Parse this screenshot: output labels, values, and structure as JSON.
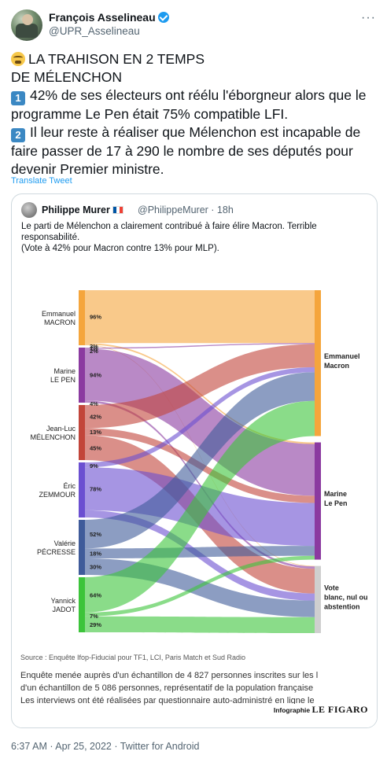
{
  "tweet": {
    "author_name": "François Asselineau",
    "author_handle": "@UPR_Asselineau",
    "line1": "LA TRAHISON EN 2 TEMPS",
    "line2": "DE MÉLENCHON",
    "key1": "1",
    "point1": "42% de ses électeurs ont réélu l'éborgneur alors que le programme Le Pen était 75% compatible LFI.",
    "key2": "2",
    "point2": "Il leur reste à réaliser que Mélenchon est incapable de faire passer de 17 à 290 le nombre de ses députés pour devenir Premier ministre.",
    "translate_label": "Translate Tweet",
    "meta": "6:37 AM · Apr 25, 2022 · Twitter for Android"
  },
  "quoted": {
    "author_name": "Philippe Murer",
    "author_handle": "@PhilippeMurer · 18h",
    "text_line1": "Le parti de Mélenchon a clairement contribué à faire élire Macron. Terrible responsabilité.",
    "text_line2": "(Vote à 42% pour Macron contre 13% pour MLP)."
  },
  "chart_data": {
    "type": "sankey",
    "sources": [
      {
        "label_l1": "Emmanuel",
        "label_l2": "MACRON",
        "color": "#f5a53c",
        "flows": [
          96,
          3,
          1
        ],
        "labels": [
          "96%",
          "3%",
          "1%"
        ]
      },
      {
        "label_l1": "Marine",
        "label_l2": "LE PEN",
        "color": "#8b3aa0",
        "flows": [
          2,
          94,
          4
        ],
        "labels": [
          "2%",
          "94%",
          "4%"
        ]
      },
      {
        "label_l1": "Jean-Luc",
        "label_l2": "MÉLENCHON",
        "color": "#c2453a",
        "flows": [
          42,
          13,
          45
        ],
        "labels": [
          "42%",
          "13%",
          "45%"
        ]
      },
      {
        "label_l1": "Éric",
        "label_l2": "ZEMMOUR",
        "color": "#6b4fd1",
        "flows": [
          9,
          78,
          13
        ],
        "labels": [
          "9%",
          "78%",
          ""
        ]
      },
      {
        "label_l1": "Valérie",
        "label_l2": "PÉCRESSE",
        "color": "#3f5b9a",
        "flows": [
          52,
          18,
          30
        ],
        "labels": [
          "52%",
          "18%",
          "30%"
        ]
      },
      {
        "label_l1": "Yannick",
        "label_l2": "JADOT",
        "color": "#3cc43a",
        "flows": [
          64,
          7,
          29
        ],
        "labels": [
          "64%",
          "7%",
          "29%"
        ]
      }
    ],
    "targets": [
      {
        "label": "Emmanuel Macron",
        "color": "#f5a53c"
      },
      {
        "label": "Marine Le Pen",
        "color": "#8b3aa0"
      },
      {
        "label": "Vote blanc, nul ou abstention",
        "color": "#cfcfcf"
      }
    ],
    "source_note": "Source : Enquête Ifop-Fiducial pour TF1, LCI, Paris Match et Sud Radio",
    "note_line1": "Enquête menée auprès d'un échantillon de 4 827 personnes inscrites sur les l",
    "note_line2": "d'un échantillon de 5 086 personnes, représentatif de la population française",
    "note_line3": "Les interviews ont été réalisées par questionnaire auto-administré en ligne le",
    "credit_prefix": "Infographie",
    "credit_brand": "LE FIGARO"
  }
}
